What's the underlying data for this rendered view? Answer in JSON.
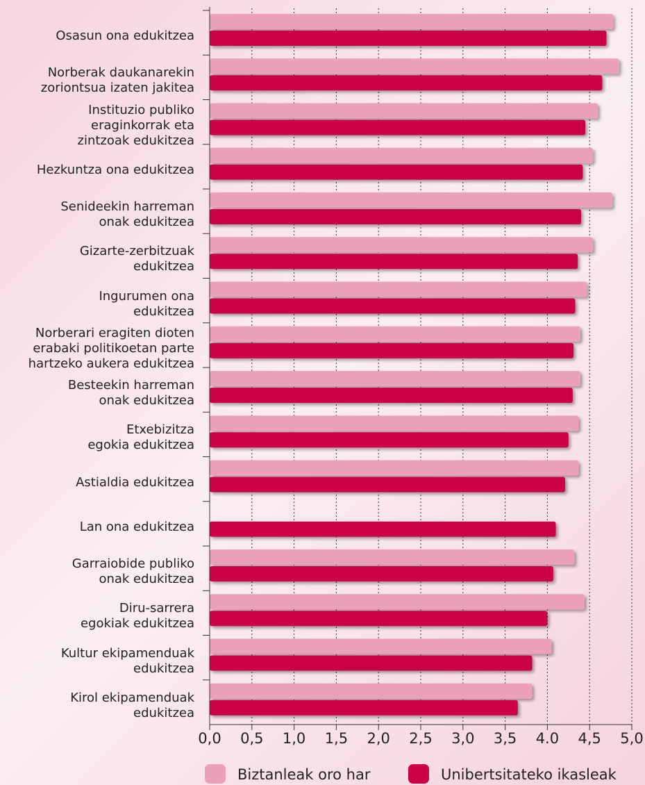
{
  "chart_data": {
    "type": "bar",
    "orientation": "horizontal",
    "categories": [
      "Osasun ona edukitzea",
      "Norberak daukanarekin\nzoriontsua izaten jakitea",
      "Instituzio publiko\neraginkorrak eta\nzintzoak edukitzea",
      "Hezkuntza ona edukitzea",
      "Senideekin harreman\nonak edukitzea",
      "Gizarte-zerbitzuak\nedukitzea",
      "Ingurumen ona\nedukitzea",
      "Norberari eragiten dioten\nerabaki politikoetan parte\nhartzeko aukera edukitzea",
      "Besteekin harreman\nonak edukitzea",
      "Etxebizitza\negokia edukitzea",
      "Astialdia edukitzea",
      "Lan ona edukitzea",
      "Garraiobide publiko\nonak edukitzea",
      "Diru-sarrera\negokiak edukitzea",
      "Kultur ekipamenduak\nedukitzea",
      "Kirol ekipamenduak\nedukitzea"
    ],
    "series": [
      {
        "name": "Biztanleak oro har",
        "color": "#eda1b9",
        "values": [
          4.78,
          4.85,
          4.6,
          4.54,
          4.77,
          4.54,
          4.47,
          4.39,
          4.39,
          4.37,
          4.37,
          null,
          4.32,
          4.44,
          4.05,
          3.82
        ]
      },
      {
        "name": "Unibertsitateko ikasleak",
        "color": "#cc0044",
        "values": [
          4.7,
          4.65,
          4.45,
          4.42,
          4.4,
          4.36,
          4.33,
          4.31,
          4.3,
          4.25,
          4.21,
          4.1,
          4.07,
          4.0,
          3.82,
          3.65
        ]
      }
    ],
    "xlim": [
      0,
      5
    ],
    "xticks": [
      {
        "value": 0,
        "label": "0,0"
      },
      {
        "value": 0.5,
        "label": "0,5"
      },
      {
        "value": 1,
        "label": "1,0"
      },
      {
        "value": 1.5,
        "label": "1,5"
      },
      {
        "value": 2,
        "label": "2,0"
      },
      {
        "value": 2.5,
        "label": "2,5"
      },
      {
        "value": 3,
        "label": "3,0"
      },
      {
        "value": 3.5,
        "label": "3,5"
      },
      {
        "value": 4,
        "label": "4.0"
      },
      {
        "value": 4.5,
        "label": "4,5"
      },
      {
        "value": 5,
        "label": "5,0"
      }
    ],
    "grid": true,
    "legend": "bottom"
  }
}
